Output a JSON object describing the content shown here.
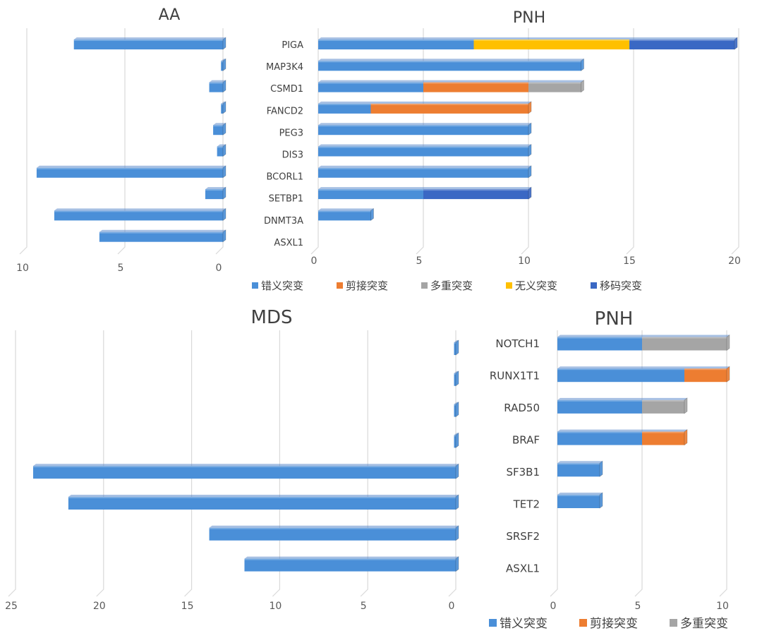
{
  "chart_data": [
    {
      "type": "bar",
      "orientation": "horizontal",
      "title": "AA",
      "direction": "reversed",
      "categories": [
        "PIGA",
        "MAP3K4",
        "CSMD1",
        "FANCD2",
        "PEG3",
        "DIS3",
        "BCORL1",
        "SETBP1",
        "DNMT3A",
        "ASXL1"
      ],
      "xlim": [
        0,
        10
      ],
      "xticks": [
        "0",
        "5",
        "10"
      ],
      "grid": true,
      "series": [
        {
          "name": "错义突变",
          "color": "#4a8fd8",
          "values": [
            7.6,
            0.1,
            0.7,
            0.1,
            0.5,
            0.3,
            9.5,
            0.9,
            8.6,
            6.3
          ]
        }
      ]
    },
    {
      "type": "bar",
      "orientation": "horizontal",
      "stacked": true,
      "title": "PNH",
      "categories": [
        "PIGA",
        "MAP3K4",
        "CSMD1",
        "FANCD2",
        "PEG3",
        "DIS3",
        "BCORL1",
        "SETBP1",
        "DNMT3A",
        "ASXL1"
      ],
      "xlim": [
        0,
        20
      ],
      "xticks": [
        "0",
        "5",
        "10",
        "15",
        "20"
      ],
      "grid": true,
      "legend": "bottom",
      "series": [
        {
          "name": "错义突变",
          "color": "#4a8fd8",
          "values": [
            7.4,
            12.5,
            5,
            2.5,
            10,
            10,
            10,
            5,
            2.5,
            0
          ]
        },
        {
          "name": "剪接突变",
          "color": "#ed7d31",
          "values": [
            0,
            0,
            5,
            7.5,
            0,
            0,
            0,
            0,
            0,
            0
          ]
        },
        {
          "name": "多重突变",
          "color": "#a5a5a5",
          "values": [
            0,
            0,
            2.5,
            0,
            0,
            0,
            0,
            0,
            0,
            0
          ]
        },
        {
          "name": "无义突变",
          "color": "#ffc000",
          "values": [
            7.4,
            0,
            0,
            0,
            0,
            0,
            0,
            0,
            0,
            0
          ]
        },
        {
          "name": "移码突变",
          "color": "#3a68c4",
          "values": [
            5,
            0,
            0,
            0,
            0,
            0,
            0,
            5,
            0,
            0
          ]
        }
      ]
    },
    {
      "type": "bar",
      "orientation": "horizontal",
      "title": "MDS",
      "direction": "reversed",
      "categories": [
        "NOTCH1",
        "RUNX1T1",
        "RAD50",
        "BRAF",
        "SF3B1",
        "TET2",
        "SRSF2",
        "ASXL1"
      ],
      "xlim": [
        0,
        25
      ],
      "xticks": [
        "0",
        "5",
        "10",
        "15",
        "20",
        "25"
      ],
      "grid": true,
      "series": [
        {
          "name": "错义突变",
          "color": "#4a8fd8",
          "values": [
            0.1,
            0.1,
            0.1,
            0.1,
            24,
            22,
            14,
            12
          ]
        }
      ]
    },
    {
      "type": "bar",
      "orientation": "horizontal",
      "stacked": true,
      "title": "PNH",
      "categories": [
        "NOTCH1",
        "RUNX1T1",
        "RAD50",
        "BRAF",
        "SF3B1",
        "TET2",
        "SRSF2",
        "ASXL1"
      ],
      "xlim": [
        0,
        10
      ],
      "xticks": [
        "0",
        "5",
        "10"
      ],
      "grid": true,
      "legend": "bottom-right",
      "series": [
        {
          "name": "错义突变",
          "color": "#4a8fd8",
          "values": [
            5,
            7.5,
            5,
            5,
            2.5,
            2.5,
            0,
            0
          ]
        },
        {
          "name": "剪接突变",
          "color": "#ed7d31",
          "values": [
            0,
            2.5,
            0,
            2.5,
            0,
            0,
            0,
            0
          ]
        },
        {
          "name": "多重突变",
          "color": "#a5a5a5",
          "values": [
            5,
            0,
            2.5,
            0,
            0,
            0,
            0,
            0
          ]
        }
      ]
    }
  ]
}
